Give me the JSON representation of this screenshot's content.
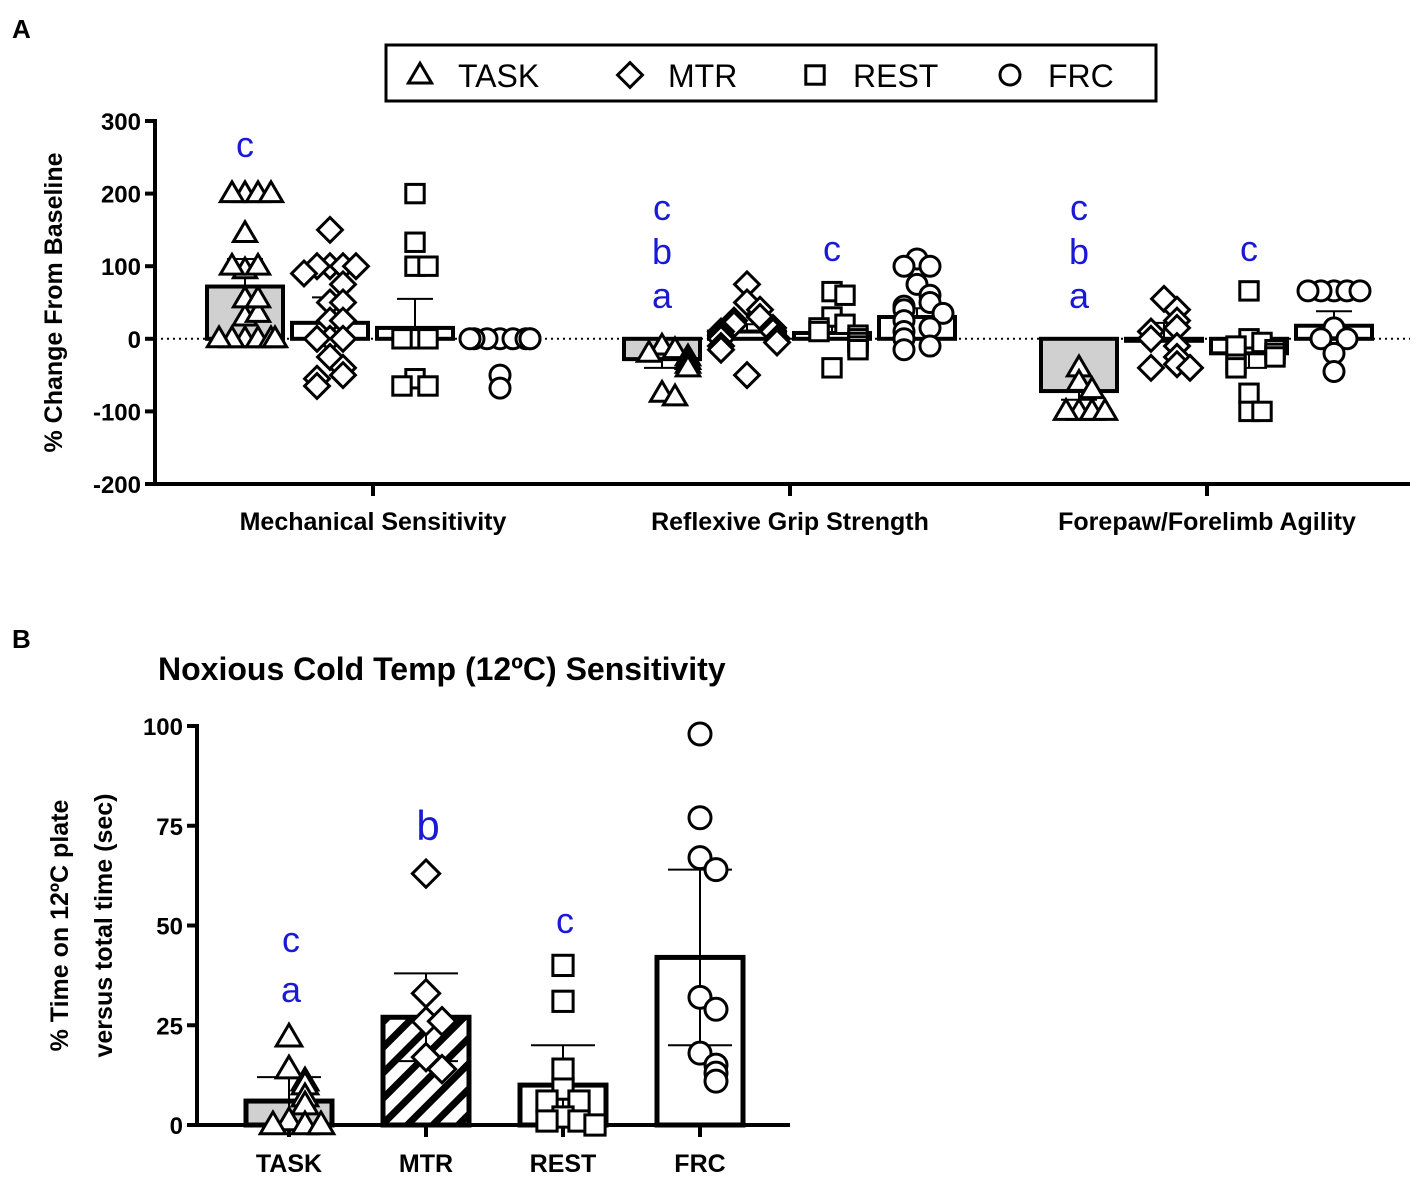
{
  "panel_a_label": "A",
  "panel_b_label": "B",
  "colors": {
    "accent_letters": "#1a1ad6",
    "bar_fill_gray": "#d0d0d0",
    "ink": "#000000"
  },
  "chart_data": [
    {
      "type": "bar",
      "panel": "A",
      "title": "",
      "ylabel": "% Change From Baseline",
      "ylim": [
        -200,
        300
      ],
      "yticks": [
        -200,
        -100,
        0,
        100,
        200,
        300
      ],
      "baseline_dotted": 0,
      "legend": {
        "placement": "top",
        "entries": [
          {
            "label": "TASK",
            "marker": "triangle"
          },
          {
            "label": "MTR",
            "marker": "diamond"
          },
          {
            "label": "REST",
            "marker": "square"
          },
          {
            "label": "FRC",
            "marker": "circle"
          }
        ]
      },
      "categories": [
        "Mechanical Sensitivity",
        "Reflexive Grip Strength",
        "Forepaw/Forelimb Agility"
      ],
      "groups": [
        {
          "category": "Mechanical Sensitivity",
          "series": [
            {
              "name": "TASK",
              "mean": 72,
              "sem": 38,
              "fill": "gray",
              "letters": [
                "c"
              ],
              "points": [
                0,
                0,
                0,
                0,
                0,
                0,
                30,
                35,
                55,
                55,
                95,
                100,
                100,
                145,
                200,
                200,
                200,
                200
              ]
            },
            {
              "name": "MTR",
              "mean": 22,
              "sem": 35,
              "fill": "white",
              "letters": [],
              "points": [
                150,
                100,
                100,
                100,
                100,
                90,
                75,
                50,
                50,
                25,
                25,
                0,
                0,
                0,
                -25,
                -40,
                -50,
                -55,
                -65
              ]
            },
            {
              "name": "REST",
              "mean": 15,
              "sem": 40,
              "fill": "white",
              "letters": [],
              "points": [
                200,
                133,
                100,
                100,
                0,
                0,
                0,
                -55,
                -65,
                -65
              ]
            },
            {
              "name": "FRC",
              "mean": 0,
              "sem": 0,
              "fill": "white",
              "letters": [],
              "points": [
                0,
                0,
                0,
                0,
                0,
                0,
                0,
                0,
                -50,
                -68
              ]
            }
          ]
        },
        {
          "category": "Reflexive Grip Strength",
          "series": [
            {
              "name": "TASK",
              "mean": -28,
              "sem": 12,
              "fill": "gray",
              "letters": [
                "c",
                "b",
                "a"
              ],
              "points": [
                -10,
                -15,
                -20,
                -25,
                -30,
                -35,
                -40,
                -75,
                -80
              ]
            },
            {
              "name": "MTR",
              "mean": 10,
              "sem": 10,
              "fill": "white",
              "letters": [],
              "points": [
                75,
                50,
                40,
                30,
                25,
                20,
                15,
                10,
                10,
                5,
                0,
                0,
                -5,
                -10,
                -15,
                -50
              ]
            },
            {
              "name": "REST",
              "mean": 8,
              "sem": 10,
              "fill": "white",
              "letters": [
                "c"
              ],
              "points": [
                65,
                60,
                30,
                20,
                15,
                10,
                5,
                0,
                -5,
                -10,
                -15,
                -40
              ]
            },
            {
              "name": "FRC",
              "mean": 30,
              "sem": 12,
              "fill": "white",
              "letters": [],
              "points": [
                110,
                100,
                100,
                75,
                60,
                50,
                45,
                40,
                35,
                25,
                15,
                10,
                0,
                -10,
                -15
              ]
            }
          ]
        },
        {
          "category": "Forepaw/Forelimb Agility",
          "series": [
            {
              "name": "TASK",
              "mean": -72,
              "sem": 12,
              "fill": "gray",
              "letters": [
                "c",
                "b",
                "a"
              ],
              "points": [
                -40,
                -60,
                -70,
                -100,
                -100,
                -100,
                -100
              ]
            },
            {
              "name": "MTR",
              "mean": 0,
              "sem": 22,
              "fill": "white",
              "letters": [],
              "points": [
                55,
                40,
                25,
                15,
                10,
                0,
                -10,
                -25,
                -35,
                -40,
                -40
              ]
            },
            {
              "name": "REST",
              "mean": -20,
              "sem": 20,
              "fill": "white",
              "letters": [
                "c"
              ],
              "points": [
                66,
                0,
                -5,
                -10,
                -15,
                -20,
                -25,
                -35,
                -40,
                -75,
                -100,
                -100
              ]
            },
            {
              "name": "FRC",
              "mean": 18,
              "sem": 20,
              "fill": "white",
              "letters": [],
              "points": [
                66,
                66,
                66,
                66,
                66,
                15,
                0,
                0,
                -20,
                -45
              ]
            }
          ]
        }
      ]
    },
    {
      "type": "bar",
      "panel": "B",
      "title": "Noxious Cold Temp (12ºC) Sensitivity",
      "ylabel": [
        "% Time on 12ºC plate",
        "versus total time (sec)"
      ],
      "ylim": [
        0,
        100
      ],
      "yticks": [
        0,
        25,
        50,
        75,
        100
      ],
      "categories": [
        "TASK",
        "MTR",
        "REST",
        "FRC"
      ],
      "series": [
        {
          "name": "TASK",
          "mean": 6,
          "sem": 6,
          "fill": "gray",
          "marker": "triangle",
          "letters": [
            "c",
            "a"
          ],
          "points": [
            22,
            14,
            11,
            10,
            7,
            5,
            1,
            0,
            0,
            0
          ]
        },
        {
          "name": "MTR",
          "mean": 27,
          "sem": 11,
          "fill": "hatched",
          "marker": "diamond",
          "letters": [
            "b"
          ],
          "points": [
            63,
            33,
            26,
            26,
            17,
            14
          ]
        },
        {
          "name": "REST",
          "mean": 10,
          "sem": 10,
          "fill": "white",
          "marker": "square",
          "letters": [
            "c"
          ],
          "points": [
            40,
            31,
            14,
            9,
            6,
            6,
            2,
            1,
            1,
            0
          ]
        },
        {
          "name": "FRC",
          "mean": 42,
          "sem": 22,
          "fill": "white",
          "marker": "circle",
          "letters": [],
          "points": [
            98,
            77,
            67,
            64,
            32,
            29,
            18,
            15,
            13,
            11
          ]
        }
      ]
    }
  ]
}
